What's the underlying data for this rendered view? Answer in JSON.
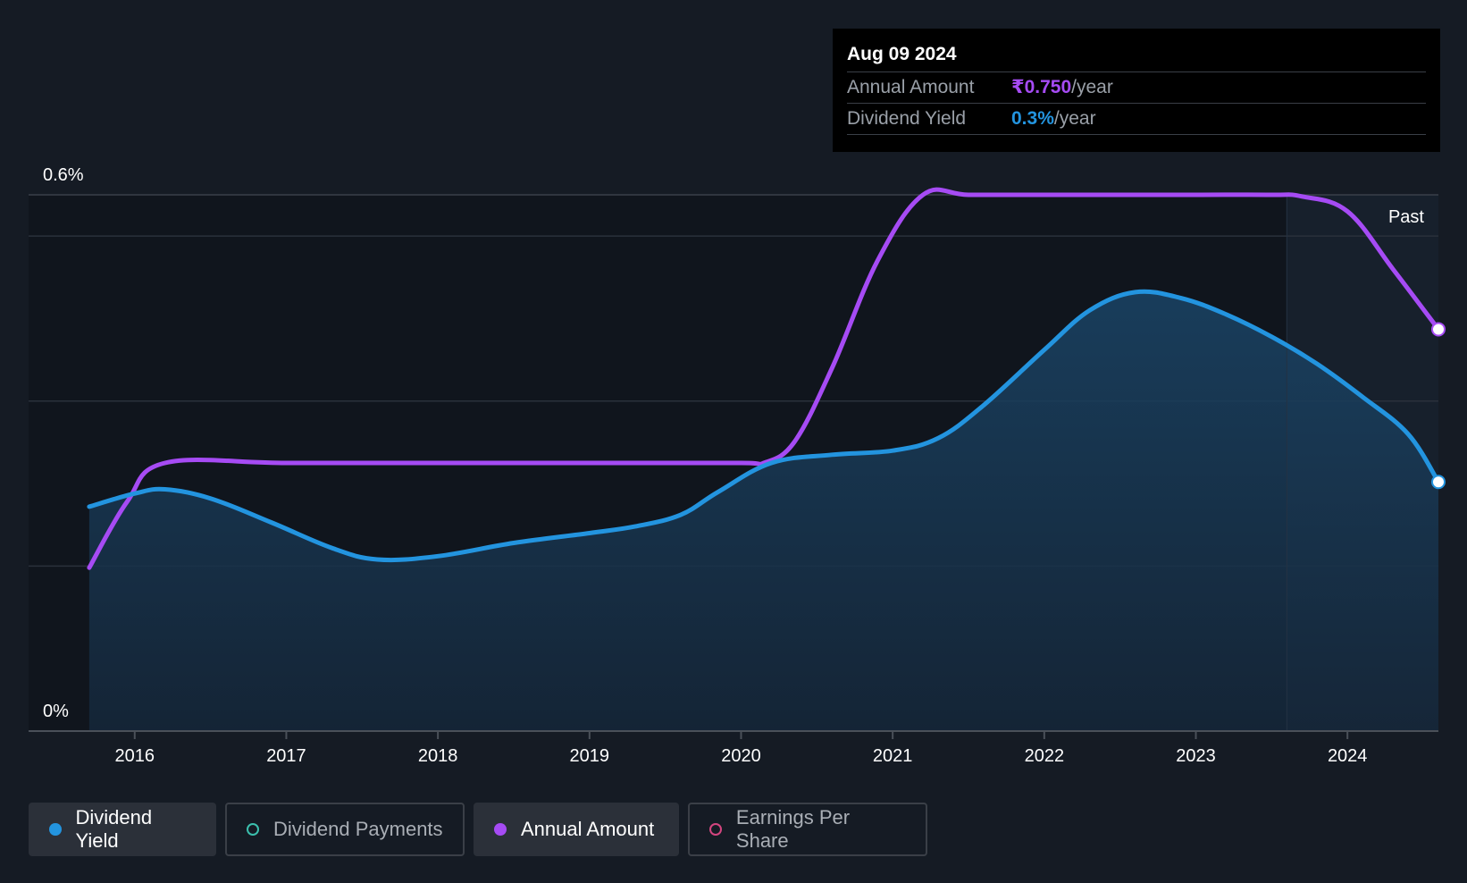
{
  "tooltip": {
    "date": "Aug 09 2024",
    "rows": [
      {
        "label": "Annual Amount",
        "value": "₹0.750",
        "unit": "/year"
      },
      {
        "label": "Dividend Yield",
        "value": "0.3%",
        "unit": "/year"
      }
    ]
  },
  "legend": {
    "items": [
      {
        "label": "Dividend Yield",
        "color": "#2394df",
        "active": true
      },
      {
        "label": "Dividend Payments",
        "color": "#3bbfad",
        "active": false
      },
      {
        "label": "Annual Amount",
        "color": "#a64bf4",
        "active": true
      },
      {
        "label": "Earnings Per Share",
        "color": "#d3457f",
        "active": false
      }
    ]
  },
  "chart_data": {
    "type": "line",
    "y_tick_labels": [
      "0.6%",
      "0%"
    ],
    "x_tick_labels": [
      "2016",
      "2017",
      "2018",
      "2019",
      "2020",
      "2021",
      "2022",
      "2023",
      "2024"
    ],
    "x_ticks": [
      2016,
      2017,
      2018,
      2019,
      2020,
      2021,
      2022,
      2023,
      2024
    ],
    "xlim": [
      2015.3,
      2024.6
    ],
    "ylim": [
      0,
      0.65
    ],
    "past_label": "Past",
    "past_start": 2023.6,
    "grid": true,
    "series": [
      {
        "name": "Dividend Yield",
        "color": "#2394df",
        "x": [
          2015.7,
          2016.0,
          2016.2,
          2016.5,
          2016.9,
          2017.3,
          2017.6,
          2018.0,
          2018.5,
          2019.0,
          2019.3,
          2019.6,
          2019.85,
          2020.2,
          2020.6,
          2021.0,
          2021.3,
          2021.6,
          2022.0,
          2022.3,
          2022.6,
          2022.9,
          2023.2,
          2023.5,
          2023.8,
          2024.1,
          2024.4,
          2024.6
        ],
        "y": [
          0.272,
          0.288,
          0.293,
          0.282,
          0.253,
          0.222,
          0.208,
          0.212,
          0.228,
          0.24,
          0.248,
          0.262,
          0.29,
          0.325,
          0.335,
          0.34,
          0.355,
          0.395,
          0.462,
          0.51,
          0.532,
          0.525,
          0.505,
          0.478,
          0.445,
          0.405,
          0.36,
          0.302
        ]
      },
      {
        "name": "Annual Amount",
        "color": "#a64bf4",
        "x": [
          2015.7,
          2015.95,
          2016.2,
          2017.0,
          2018.0,
          2019.0,
          2020.0,
          2020.15,
          2020.35,
          2020.6,
          2020.9,
          2021.2,
          2021.5,
          2022.0,
          2022.5,
          2023.0,
          2023.5,
          2023.7,
          2024.0,
          2024.3,
          2024.6
        ],
        "y": [
          0.198,
          0.278,
          0.325,
          0.325,
          0.325,
          0.325,
          0.325,
          0.325,
          0.35,
          0.44,
          0.57,
          0.65,
          0.65,
          0.65,
          0.65,
          0.65,
          0.65,
          0.648,
          0.63,
          0.56,
          0.487
        ]
      }
    ]
  }
}
